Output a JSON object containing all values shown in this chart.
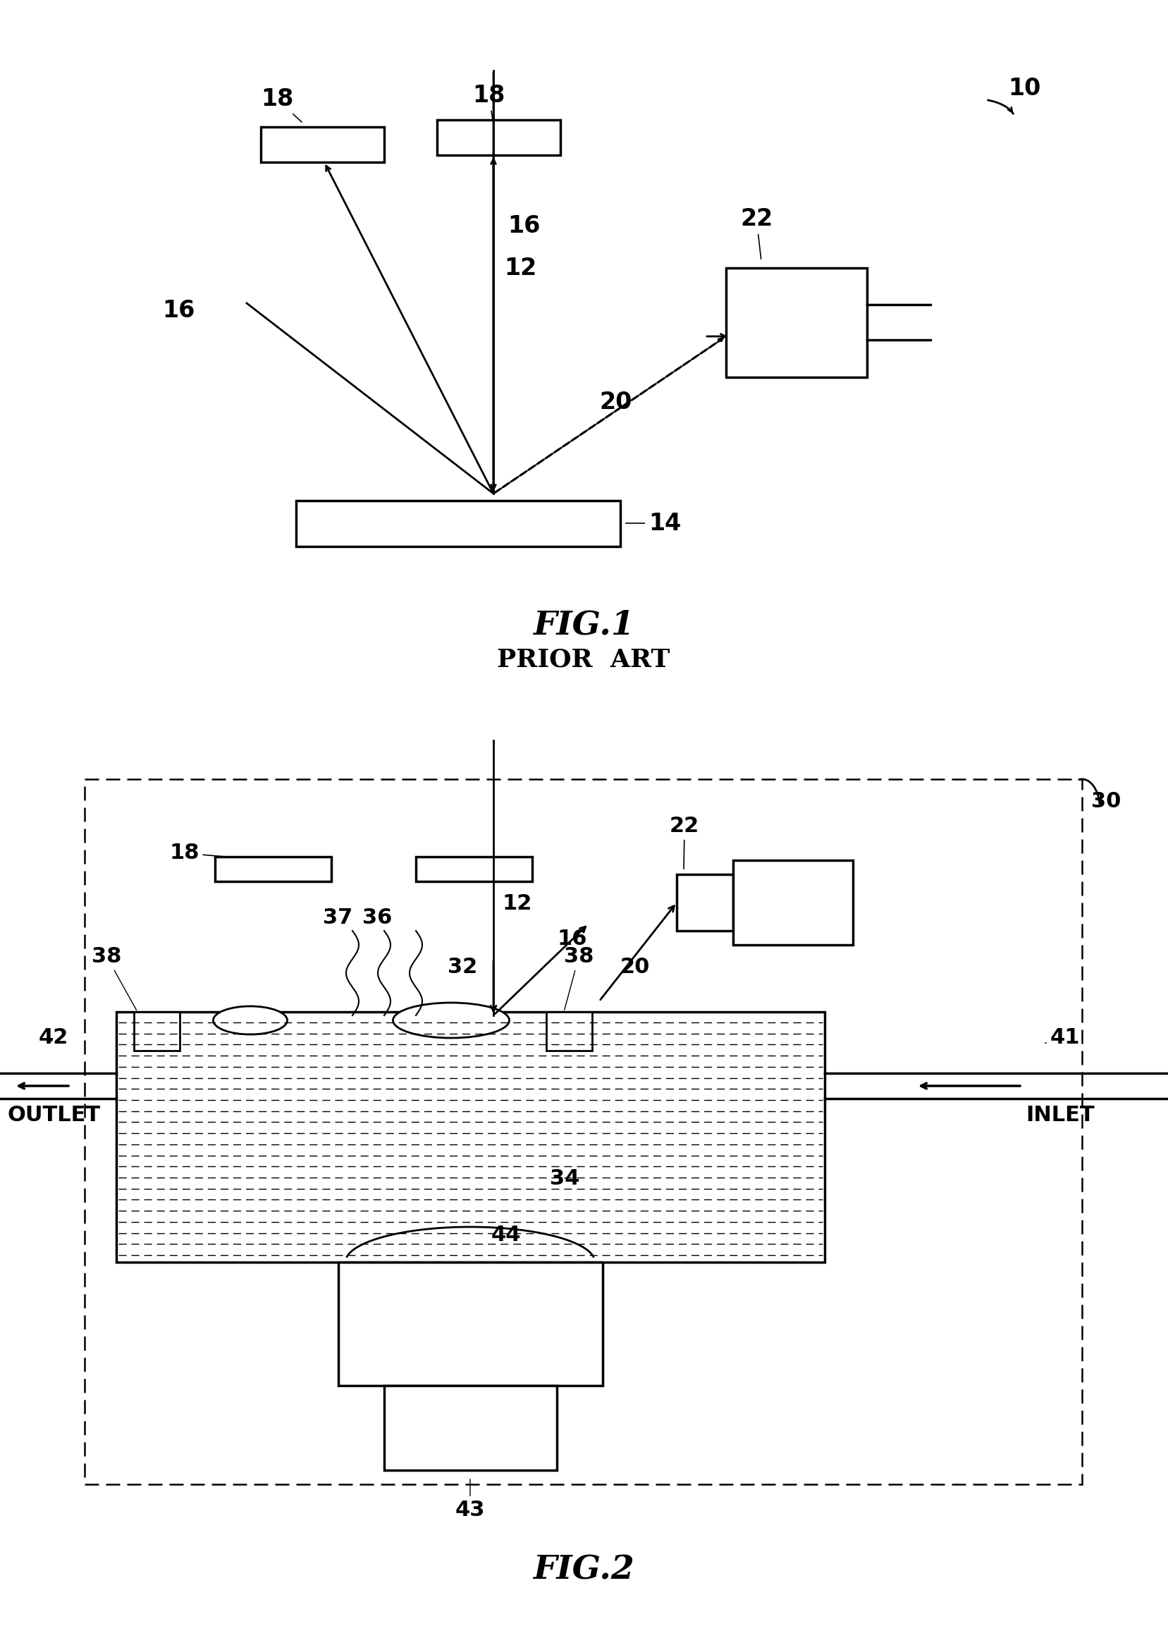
{
  "bg_color": "#ffffff",
  "fig_width": 16.57,
  "fig_height": 23.4,
  "fig1_title": "FIG.1",
  "fig1_subtitle": "PRIOR  ART",
  "fig2_title": "FIG.2",
  "label_10": "10",
  "label_12": "12",
  "label_14": "14",
  "label_16": "16",
  "label_18": "18",
  "label_20": "20",
  "label_22": "22",
  "label_30": "30",
  "label_32": "32",
  "label_34": "34",
  "label_36": "36",
  "label_37": "37",
  "label_38": "38",
  "label_41": "41",
  "label_42": "42",
  "label_43": "43",
  "label_44": "44",
  "outlet_text": "OUTLET",
  "inlet_text": "INLET"
}
